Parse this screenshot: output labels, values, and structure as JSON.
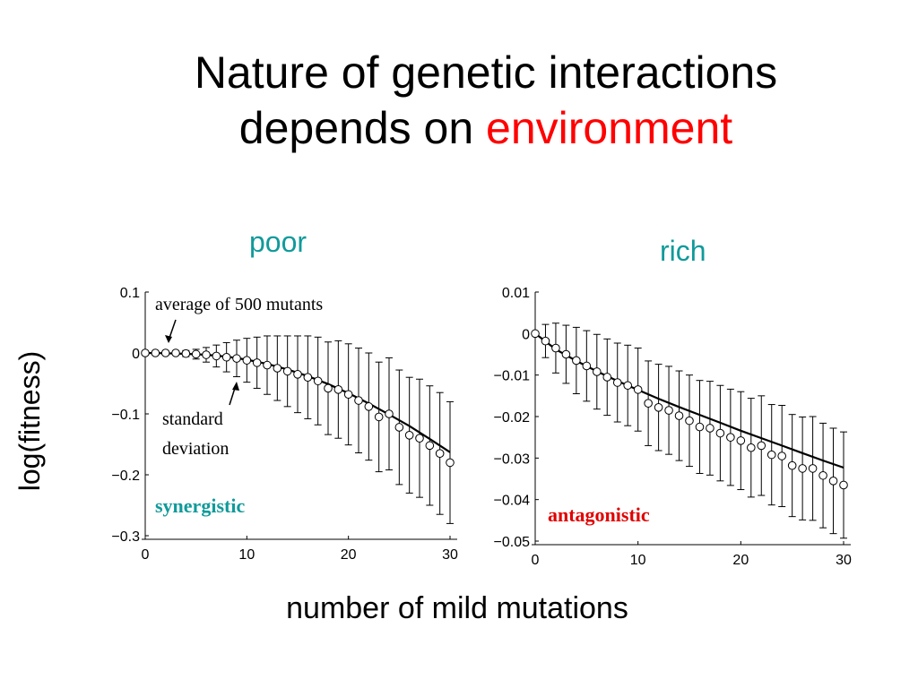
{
  "slide": {
    "title_line1": "Nature of genetic interactions",
    "title_line2_prefix": "depends on ",
    "title_highlight": "environment",
    "ylabel": "log(fitness)",
    "xlabel": "number of mild mutations",
    "colors": {
      "highlight": "#ff0000",
      "panel_label": "#109a9a",
      "synergistic": "#109a9a",
      "antagonistic": "#e00000"
    }
  },
  "chart_data": [
    {
      "type": "scatter",
      "panel_label": "poor",
      "xlabel": "number of mild mutations",
      "ylabel": "log(fitness)",
      "xlim": [
        0,
        30
      ],
      "ylim": [
        -0.3,
        0.1
      ],
      "x_ticks": [
        "0",
        "10",
        "20",
        "30"
      ],
      "y_ticks": [
        "0.1",
        "0",
        "−0.1",
        "−0.2",
        "−0.3"
      ],
      "annotations": [
        "average of 500 mutants",
        "standard",
        "deviation"
      ],
      "regime": "synergistic",
      "series": [
        {
          "x": [
            0,
            1,
            2,
            3,
            4,
            5,
            6,
            7,
            8,
            9,
            10,
            11,
            12,
            13,
            14,
            15,
            16,
            17,
            18,
            19,
            20,
            21,
            22,
            23,
            24,
            25,
            26,
            27,
            28,
            29,
            30
          ],
          "values": [
            0.0,
            0.0,
            0.0,
            0.0,
            -0.001,
            -0.002,
            -0.003,
            -0.005,
            -0.007,
            -0.009,
            -0.012,
            -0.016,
            -0.02,
            -0.025,
            -0.03,
            -0.035,
            -0.04,
            -0.046,
            -0.058,
            -0.06,
            -0.068,
            -0.078,
            -0.088,
            -0.105,
            -0.1,
            -0.122,
            -0.135,
            -0.14,
            -0.152,
            -0.165,
            -0.18
          ],
          "error": [
            0.0,
            0.001,
            0.002,
            0.003,
            0.005,
            0.008,
            0.012,
            0.018,
            0.024,
            0.03,
            0.036,
            0.042,
            0.048,
            0.053,
            0.058,
            0.063,
            0.068,
            0.072,
            0.076,
            0.08,
            0.083,
            0.086,
            0.088,
            0.09,
            0.092,
            0.094,
            0.095,
            0.097,
            0.098,
            0.1,
            0.1
          ]
        },
        {
          "name": "fit",
          "x": [
            0,
            2,
            4,
            6,
            8,
            10,
            12,
            14,
            16,
            18,
            20,
            22,
            24,
            26,
            28,
            30
          ],
          "values": [
            0.0,
            -0.0005,
            -0.0015,
            -0.003,
            -0.006,
            -0.011,
            -0.018,
            -0.027,
            -0.038,
            -0.051,
            -0.066,
            -0.083,
            -0.101,
            -0.12,
            -0.141,
            -0.163
          ]
        }
      ]
    },
    {
      "type": "scatter",
      "panel_label": "rich",
      "xlabel": "number of mild mutations",
      "ylabel": "log(fitness)",
      "xlim": [
        0,
        30
      ],
      "ylim": [
        -0.05,
        0.01
      ],
      "x_ticks": [
        "0",
        "10",
        "20",
        "30"
      ],
      "y_ticks": [
        "0.01",
        "0",
        "−0.01",
        "−0.02",
        "−0.03",
        "−0.04",
        "−0.05"
      ],
      "regime": "antagonistic",
      "series": [
        {
          "x": [
            0,
            1,
            2,
            3,
            4,
            5,
            6,
            7,
            8,
            9,
            10,
            11,
            12,
            13,
            14,
            15,
            16,
            17,
            18,
            19,
            20,
            21,
            22,
            23,
            24,
            25,
            26,
            27,
            28,
            29,
            30
          ],
          "values": [
            0.0,
            -0.0018,
            -0.0035,
            -0.005,
            -0.0065,
            -0.0078,
            -0.0092,
            -0.0105,
            -0.0118,
            -0.0125,
            -0.0135,
            -0.0168,
            -0.0178,
            -0.0185,
            -0.0198,
            -0.021,
            -0.0225,
            -0.0228,
            -0.024,
            -0.025,
            -0.0258,
            -0.0275,
            -0.027,
            -0.0292,
            -0.0295,
            -0.0318,
            -0.0325,
            -0.0325,
            -0.0342,
            -0.0355,
            -0.0365
          ],
          "error": [
            0.0,
            0.004,
            0.006,
            0.007,
            0.008,
            0.0085,
            0.009,
            0.0092,
            0.0095,
            0.0097,
            0.01,
            0.0102,
            0.0104,
            0.0106,
            0.0108,
            0.011,
            0.0112,
            0.0113,
            0.0115,
            0.0116,
            0.0118,
            0.0119,
            0.012,
            0.0121,
            0.0122,
            0.0123,
            0.0124,
            0.0125,
            0.0126,
            0.0127,
            0.0128
          ]
        },
        {
          "name": "fit",
          "x": [
            0,
            2,
            4,
            6,
            8,
            10,
            12,
            14,
            16,
            18,
            20,
            22,
            24,
            26,
            28,
            30
          ],
          "values": [
            0.0,
            -0.0038,
            -0.0066,
            -0.0091,
            -0.0114,
            -0.0136,
            -0.0157,
            -0.0177,
            -0.0196,
            -0.0215,
            -0.0234,
            -0.0252,
            -0.027,
            -0.0288,
            -0.0306,
            -0.0323
          ]
        }
      ]
    }
  ]
}
